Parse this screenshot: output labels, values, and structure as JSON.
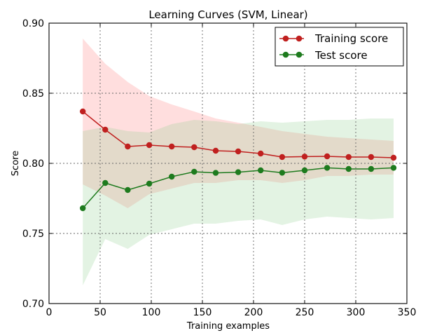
{
  "chart_data": {
    "type": "line",
    "title": "Learning Curves (SVM, Linear)",
    "xlabel": "Training examples",
    "ylabel": "Score",
    "xlim": [
      0,
      350
    ],
    "ylim": [
      0.7,
      0.9
    ],
    "xticks": [
      0,
      50,
      100,
      150,
      200,
      250,
      300,
      350
    ],
    "xtick_labels": [
      "0",
      "50",
      "100",
      "150",
      "200",
      "250",
      "300",
      "350"
    ],
    "yticks": [
      0.7,
      0.75,
      0.8,
      0.85,
      0.9
    ],
    "ytick_labels": [
      "0.70",
      "0.75",
      "0.80",
      "0.85",
      "0.90"
    ],
    "grid": true,
    "legend_position": "top-right",
    "x": [
      33,
      55,
      77,
      98,
      120,
      142,
      163,
      185,
      207,
      228,
      250,
      272,
      293,
      315,
      337
    ],
    "series": [
      {
        "name": "Training score",
        "color": "#c0201f",
        "band_color": "#ff9999",
        "values": [
          0.837,
          0.824,
          0.812,
          0.813,
          0.812,
          0.8115,
          0.809,
          0.8085,
          0.807,
          0.8045,
          0.8048,
          0.805,
          0.8045,
          0.8045,
          0.804
        ],
        "band_upper": [
          0.889,
          0.871,
          0.858,
          0.848,
          0.842,
          0.837,
          0.832,
          0.829,
          0.826,
          0.823,
          0.821,
          0.819,
          0.818,
          0.817,
          0.816
        ],
        "band_lower": [
          0.785,
          0.777,
          0.768,
          0.778,
          0.782,
          0.786,
          0.786,
          0.788,
          0.788,
          0.786,
          0.788,
          0.791,
          0.791,
          0.792,
          0.792
        ]
      },
      {
        "name": "Test score",
        "color": "#1e7b1e",
        "band_color": "#8fd08f",
        "values": [
          0.768,
          0.786,
          0.781,
          0.7855,
          0.7905,
          0.794,
          0.7932,
          0.7937,
          0.795,
          0.7933,
          0.795,
          0.7968,
          0.796,
          0.796,
          0.7968
        ],
        "band_upper": [
          0.823,
          0.826,
          0.823,
          0.822,
          0.828,
          0.831,
          0.83,
          0.828,
          0.83,
          0.829,
          0.83,
          0.831,
          0.831,
          0.832,
          0.832
        ],
        "band_lower": [
          0.713,
          0.746,
          0.739,
          0.749,
          0.753,
          0.757,
          0.757,
          0.759,
          0.76,
          0.756,
          0.76,
          0.762,
          0.761,
          0.76,
          0.761
        ]
      }
    ]
  }
}
